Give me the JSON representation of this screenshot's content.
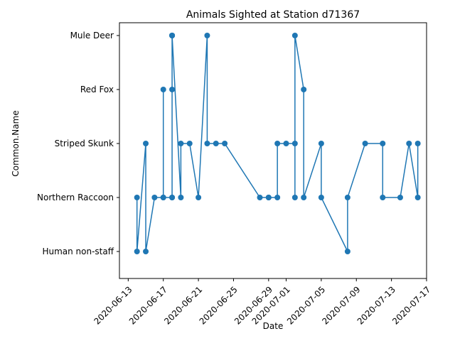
{
  "chart_data": {
    "type": "line",
    "title": "Animals Sighted at Station d71367",
    "xlabel": "Date",
    "ylabel": "Common.Name",
    "x_axis": "date",
    "xlim": [
      "2020-06-12",
      "2020-07-17"
    ],
    "x_ticks": [
      "2020-06-13",
      "2020-06-17",
      "2020-06-21",
      "2020-06-25",
      "2020-06-29",
      "2020-07-01",
      "2020-07-05",
      "2020-07-09",
      "2020-07-13",
      "2020-07-17"
    ],
    "categories": [
      "Human non-staff",
      "Northern Raccoon",
      "Striped Skunk",
      "Red Fox",
      "Mule Deer"
    ],
    "grid": false,
    "legend": "none",
    "line_color": "#1f77b4",
    "marker": "circle",
    "points": [
      {
        "date": "2020-06-14",
        "value": "Northern Raccoon"
      },
      {
        "date": "2020-06-14",
        "value": "Human non-staff"
      },
      {
        "date": "2020-06-15",
        "value": "Striped Skunk"
      },
      {
        "date": "2020-06-15",
        "value": "Human non-staff"
      },
      {
        "date": "2020-06-16",
        "value": "Northern Raccoon"
      },
      {
        "date": "2020-06-17",
        "value": "Northern Raccoon"
      },
      {
        "date": "2020-06-17",
        "value": "Red Fox"
      },
      {
        "date": "2020-06-17",
        "value": "Northern Raccoon"
      },
      {
        "date": "2020-06-18",
        "value": "Northern Raccoon"
      },
      {
        "date": "2020-06-18",
        "value": "Mule Deer"
      },
      {
        "date": "2020-06-18",
        "value": "Mule Deer"
      },
      {
        "date": "2020-06-18",
        "value": "Red Fox"
      },
      {
        "date": "2020-06-18",
        "value": "Mule Deer"
      },
      {
        "date": "2020-06-18",
        "value": "Northern Raccoon"
      },
      {
        "date": "2020-06-18",
        "value": "Mule Deer"
      },
      {
        "date": "2020-06-19",
        "value": "Northern Raccoon"
      },
      {
        "date": "2020-06-19",
        "value": "Striped Skunk"
      },
      {
        "date": "2020-06-20",
        "value": "Striped Skunk"
      },
      {
        "date": "2020-06-21",
        "value": "Northern Raccoon"
      },
      {
        "date": "2020-06-22",
        "value": "Mule Deer"
      },
      {
        "date": "2020-06-22",
        "value": "Striped Skunk"
      },
      {
        "date": "2020-06-23",
        "value": "Striped Skunk"
      },
      {
        "date": "2020-06-24",
        "value": "Striped Skunk"
      },
      {
        "date": "2020-06-28",
        "value": "Northern Raccoon"
      },
      {
        "date": "2020-06-29",
        "value": "Northern Raccoon"
      },
      {
        "date": "2020-06-29",
        "value": "Northern Raccoon"
      },
      {
        "date": "2020-06-30",
        "value": "Northern Raccoon"
      },
      {
        "date": "2020-06-30",
        "value": "Striped Skunk"
      },
      {
        "date": "2020-07-01",
        "value": "Striped Skunk"
      },
      {
        "date": "2020-07-02",
        "value": "Striped Skunk"
      },
      {
        "date": "2020-07-02",
        "value": "Northern Raccoon"
      },
      {
        "date": "2020-07-02",
        "value": "Mule Deer"
      },
      {
        "date": "2020-07-03",
        "value": "Red Fox"
      },
      {
        "date": "2020-07-03",
        "value": "Northern Raccoon"
      },
      {
        "date": "2020-07-05",
        "value": "Striped Skunk"
      },
      {
        "date": "2020-07-05",
        "value": "Northern Raccoon"
      },
      {
        "date": "2020-07-08",
        "value": "Human non-staff"
      },
      {
        "date": "2020-07-08",
        "value": "Northern Raccoon"
      },
      {
        "date": "2020-07-10",
        "value": "Striped Skunk"
      },
      {
        "date": "2020-07-12",
        "value": "Striped Skunk"
      },
      {
        "date": "2020-07-12",
        "value": "Northern Raccoon"
      },
      {
        "date": "2020-07-14",
        "value": "Northern Raccoon"
      },
      {
        "date": "2020-07-15",
        "value": "Striped Skunk"
      },
      {
        "date": "2020-07-16",
        "value": "Northern Raccoon"
      },
      {
        "date": "2020-07-16",
        "value": "Striped Skunk"
      }
    ]
  }
}
